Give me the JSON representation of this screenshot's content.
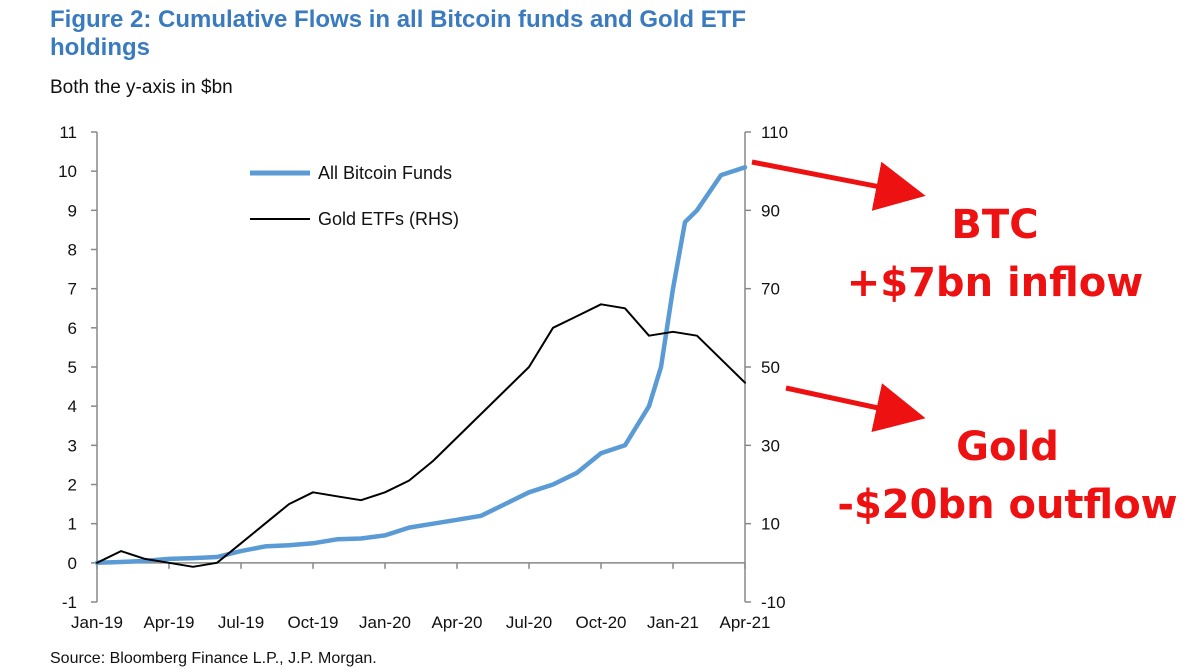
{
  "page": {
    "title": "Figure 2: Cumulative Flows in all Bitcoin funds and Gold ETF holdings",
    "subtitle": "Both the y-axis in $bn",
    "source": "Source: Bloomberg Finance L.P., J.P. Morgan."
  },
  "annotations": {
    "btc": {
      "line1": "BTC",
      "line2": "+$7bn inflow"
    },
    "gold": {
      "line1": "Gold",
      "line2": "-$20bn outflow"
    },
    "arrow_color": "#ee1111"
  },
  "chart_data": {
    "type": "line",
    "x_ticks": [
      "Jan-19",
      "Apr-19",
      "Jul-19",
      "Oct-19",
      "Jan-20",
      "Apr-20",
      "Jul-20",
      "Oct-20",
      "Jan-21",
      "Apr-21"
    ],
    "x_range": [
      "Jan-19",
      "Apr-21"
    ],
    "y_left": {
      "range": [
        -1,
        11
      ],
      "ticks": [
        -1,
        0,
        1,
        2,
        3,
        4,
        5,
        6,
        7,
        8,
        9,
        10,
        11
      ]
    },
    "y_right": {
      "range": [
        -10,
        110
      ],
      "ticks": [
        -10,
        10,
        30,
        50,
        70,
        90,
        110
      ]
    },
    "legend_position": "top-left",
    "grid": false,
    "series": [
      {
        "name": "All Bitcoin Funds",
        "axis": "left",
        "color": "#5b9bd5",
        "points": [
          [
            "Jan-19",
            0.0
          ],
          [
            "Feb-19",
            0.02
          ],
          [
            "Mar-19",
            0.05
          ],
          [
            "Apr-19",
            0.1
          ],
          [
            "May-19",
            0.12
          ],
          [
            "Jun-19",
            0.15
          ],
          [
            "Jul-19",
            0.3
          ],
          [
            "Aug-19",
            0.42
          ],
          [
            "Sep-19",
            0.45
          ],
          [
            "Oct-19",
            0.5
          ],
          [
            "Nov-19",
            0.6
          ],
          [
            "Dec-19",
            0.62
          ],
          [
            "Jan-20",
            0.7
          ],
          [
            "Feb-20",
            0.9
          ],
          [
            "Mar-20",
            1.0
          ],
          [
            "Apr-20",
            1.1
          ],
          [
            "May-20",
            1.2
          ],
          [
            "Jun-20",
            1.5
          ],
          [
            "Jul-20",
            1.8
          ],
          [
            "Aug-20",
            2.0
          ],
          [
            "Sep-20",
            2.3
          ],
          [
            "Oct-20",
            2.8
          ],
          [
            "Nov-20",
            3.0
          ],
          [
            "Dec-20",
            4.0
          ],
          [
            "Dec-20b",
            5.0
          ],
          [
            "Jan-21",
            7.0
          ],
          [
            "Jan-21b",
            8.7
          ],
          [
            "Feb-21",
            9.0
          ],
          [
            "Mar-21",
            9.9
          ],
          [
            "Apr-21",
            10.1
          ]
        ]
      },
      {
        "name": "Gold ETFs (RHS)",
        "axis": "right",
        "color": "#000000",
        "points": [
          [
            "Jan-19",
            0
          ],
          [
            "Feb-19",
            3
          ],
          [
            "Mar-19",
            1
          ],
          [
            "Apr-19",
            0
          ],
          [
            "May-19",
            -1
          ],
          [
            "Jun-19",
            0
          ],
          [
            "Jul-19",
            5
          ],
          [
            "Aug-19",
            10
          ],
          [
            "Sep-19",
            15
          ],
          [
            "Oct-19",
            18
          ],
          [
            "Nov-19",
            17
          ],
          [
            "Dec-19",
            16
          ],
          [
            "Jan-20",
            18
          ],
          [
            "Feb-20",
            21
          ],
          [
            "Mar-20",
            26
          ],
          [
            "Apr-20",
            32
          ],
          [
            "May-20",
            38
          ],
          [
            "Jun-20",
            44
          ],
          [
            "Jul-20",
            50
          ],
          [
            "Aug-20",
            60
          ],
          [
            "Sep-20",
            63
          ],
          [
            "Oct-20",
            66
          ],
          [
            "Nov-20",
            65
          ],
          [
            "Dec-20",
            58
          ],
          [
            "Jan-21",
            59
          ],
          [
            "Feb-21",
            58
          ],
          [
            "Mar-21",
            52
          ],
          [
            "Apr-21",
            46
          ]
        ]
      }
    ]
  }
}
